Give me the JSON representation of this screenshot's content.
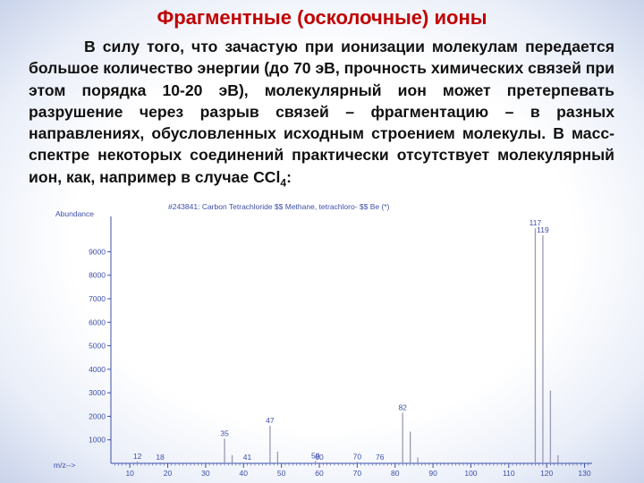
{
  "slide": {
    "title": "Фрагментные (осколочные) ионы",
    "paragraph_start": "В силу того, что зачастую при ионизации молекулам передается большое количество энергии (до 70 эВ, прочность химических связей при этом порядка 10-20 эВ), молекулярный ион может претерпевать разрушение через разрыв связей – фрагментацию – в разных направлениях, обусловленных исходным строением молекулы. В масс-спектре некоторых соединений практически отсутствует молекулярный ион, как, например в случае CCl",
    "formula_subscript": "4",
    "paragraph_end": ":"
  },
  "chart_data": {
    "type": "bar",
    "title": "#243841: Carbon Tetrachloride $$ Methane, tetrachloro- $$ Be (*)",
    "ylabel": "Abundance",
    "xlabel": "m/z-->",
    "xlim": [
      5,
      132
    ],
    "ylim": [
      0,
      10500
    ],
    "x_ticks": [
      10,
      20,
      30,
      40,
      50,
      60,
      70,
      80,
      90,
      100,
      110,
      120,
      130
    ],
    "y_ticks": [
      1000,
      2000,
      3000,
      4000,
      5000,
      6000,
      7000,
      8000,
      9000
    ],
    "peaks": [
      {
        "mz": 12,
        "abundance": 80,
        "label": "12"
      },
      {
        "mz": 18,
        "abundance": 40,
        "label": "18"
      },
      {
        "mz": 35,
        "abundance": 1050,
        "label": "35"
      },
      {
        "mz": 37,
        "abundance": 350,
        "label": ""
      },
      {
        "mz": 41,
        "abundance": 40,
        "label": "41"
      },
      {
        "mz": 47,
        "abundance": 1600,
        "label": "47"
      },
      {
        "mz": 49,
        "abundance": 500,
        "label": ""
      },
      {
        "mz": 59,
        "abundance": 100,
        "label": "59"
      },
      {
        "mz": 60,
        "abundance": 40,
        "label": "60"
      },
      {
        "mz": 70,
        "abundance": 60,
        "label": "70"
      },
      {
        "mz": 76,
        "abundance": 30,
        "label": "76"
      },
      {
        "mz": 82,
        "abundance": 2150,
        "label": "82"
      },
      {
        "mz": 84,
        "abundance": 1350,
        "label": ""
      },
      {
        "mz": 86,
        "abundance": 250,
        "label": ""
      },
      {
        "mz": 117,
        "abundance": 10000,
        "label": "117"
      },
      {
        "mz": 119,
        "abundance": 9700,
        "label": "119"
      },
      {
        "mz": 121,
        "abundance": 3100,
        "label": ""
      },
      {
        "mz": 123,
        "abundance": 350,
        "label": ""
      }
    ],
    "colors": {
      "axis": "#3e4fa8",
      "peak": "#9a9ab4",
      "label": "#3e4fa8"
    }
  }
}
